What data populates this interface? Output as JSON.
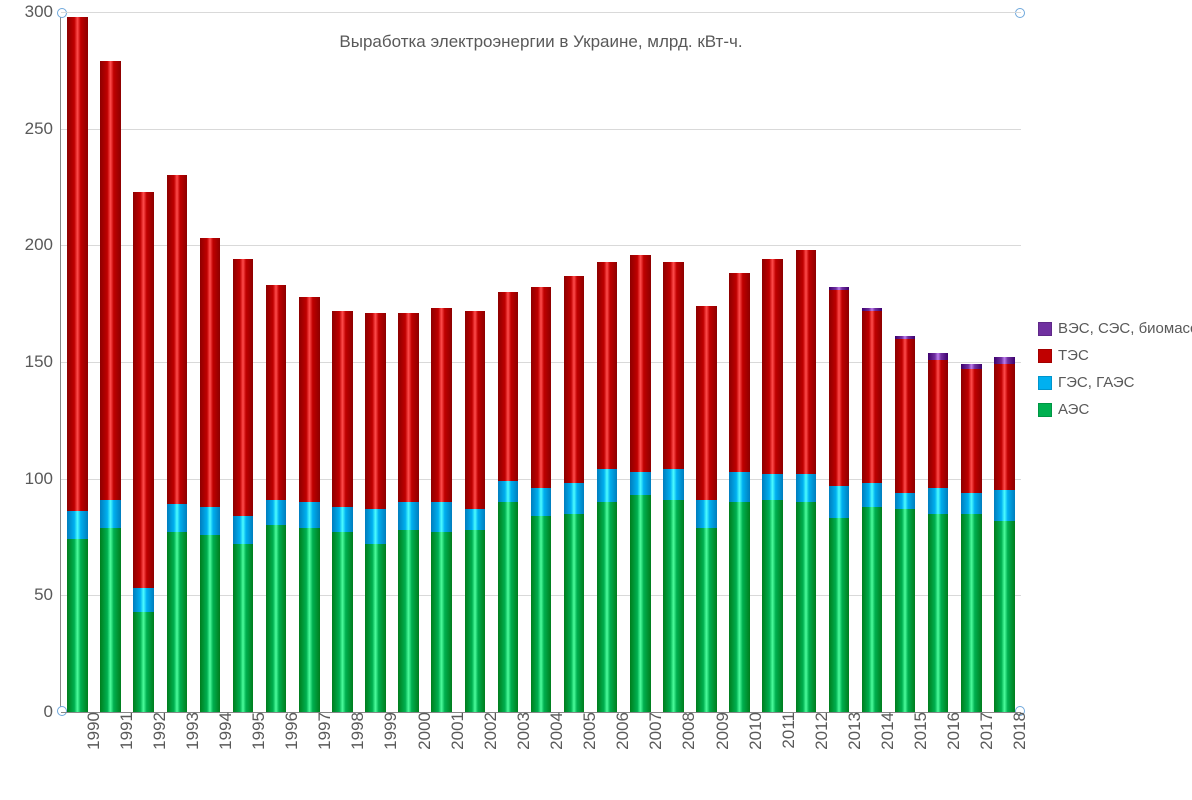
{
  "chart": {
    "type": "stacked-bar",
    "title": "Выработка электроэнергии в Украине, млрд. кВт-ч.",
    "title_fontsize": 17,
    "label_fontsize": 17,
    "label_color": "#595959",
    "background_color": "#ffffff",
    "grid_color": "#d9d9d9",
    "axis_color": "#888888",
    "ylim": [
      0,
      300
    ],
    "ytick_step": 50,
    "yticks": [
      0,
      50,
      100,
      150,
      200,
      250,
      300
    ],
    "bar_width": 0.62,
    "handle_color": "#6fa8dc",
    "series": [
      {
        "key": "aes",
        "label": "АЭС",
        "color": "#00b050"
      },
      {
        "key": "ges",
        "label": "ГЭС, ГАЭС",
        "color": "#00b0f0"
      },
      {
        "key": "tes",
        "label": "ТЭС",
        "color": "#c00000"
      },
      {
        "key": "renew",
        "label": "ВЭС, СЭС, биомасса",
        "color": "#7030a0"
      }
    ],
    "legend": {
      "order": [
        "renew",
        "tes",
        "ges",
        "aes"
      ],
      "position": "right"
    },
    "categories": [
      "1990",
      "1991",
      "1992",
      "1993",
      "1994",
      "1995",
      "1996",
      "1997",
      "1998",
      "1999",
      "2000",
      "2001",
      "2002",
      "2003",
      "2004",
      "2005",
      "2006",
      "2007",
      "2008",
      "2009",
      "2010",
      "2011",
      "2012",
      "2013",
      "2014",
      "2015",
      "2016",
      "2017",
      "2018"
    ],
    "data": {
      "1990": {
        "aes": 74,
        "ges": 12,
        "tes": 212,
        "renew": 0
      },
      "1991": {
        "aes": 79,
        "ges": 12,
        "tes": 188,
        "renew": 0
      },
      "1992": {
        "aes": 43,
        "ges": 10,
        "tes": 170,
        "renew": 0
      },
      "1993": {
        "aes": 77,
        "ges": 12,
        "tes": 141,
        "renew": 0
      },
      "1994": {
        "aes": 76,
        "ges": 12,
        "tes": 115,
        "renew": 0
      },
      "1995": {
        "aes": 72,
        "ges": 12,
        "tes": 110,
        "renew": 0
      },
      "1996": {
        "aes": 80,
        "ges": 11,
        "tes": 92,
        "renew": 0
      },
      "1997": {
        "aes": 79,
        "ges": 11,
        "tes": 88,
        "renew": 0
      },
      "1998": {
        "aes": 77,
        "ges": 11,
        "tes": 84,
        "renew": 0
      },
      "1999": {
        "aes": 72,
        "ges": 15,
        "tes": 84,
        "renew": 0
      },
      "2000": {
        "aes": 78,
        "ges": 12,
        "tes": 81,
        "renew": 0
      },
      "2001": {
        "aes": 77,
        "ges": 13,
        "tes": 83,
        "renew": 0
      },
      "2002": {
        "aes": 78,
        "ges": 9,
        "tes": 85,
        "renew": 0
      },
      "2003": {
        "aes": 90,
        "ges": 9,
        "tes": 81,
        "renew": 0
      },
      "2004": {
        "aes": 84,
        "ges": 12,
        "tes": 86,
        "renew": 0
      },
      "2005": {
        "aes": 85,
        "ges": 13,
        "tes": 89,
        "renew": 0
      },
      "2006": {
        "aes": 90,
        "ges": 14,
        "tes": 89,
        "renew": 0
      },
      "2007": {
        "aes": 93,
        "ges": 10,
        "tes": 93,
        "renew": 0
      },
      "2008": {
        "aes": 91,
        "ges": 13,
        "tes": 89,
        "renew": 0
      },
      "2009": {
        "aes": 79,
        "ges": 12,
        "tes": 83,
        "renew": 0
      },
      "2010": {
        "aes": 90,
        "ges": 13,
        "tes": 85,
        "renew": 0
      },
      "2011": {
        "aes": 91,
        "ges": 11,
        "tes": 92,
        "renew": 0
      },
      "2012": {
        "aes": 90,
        "ges": 12,
        "tes": 96,
        "renew": 0
      },
      "2013": {
        "aes": 83,
        "ges": 14,
        "tes": 84,
        "renew": 1
      },
      "2014": {
        "aes": 88,
        "ges": 10,
        "tes": 74,
        "renew": 1
      },
      "2015": {
        "aes": 87,
        "ges": 7,
        "tes": 66,
        "renew": 1
      },
      "2016": {
        "aes": 85,
        "ges": 11,
        "tes": 55,
        "renew": 3
      },
      "2017": {
        "aes": 85,
        "ges": 9,
        "tes": 53,
        "renew": 2
      },
      "2018": {
        "aes": 82,
        "ges": 13,
        "tes": 54,
        "renew": 3
      }
    }
  }
}
